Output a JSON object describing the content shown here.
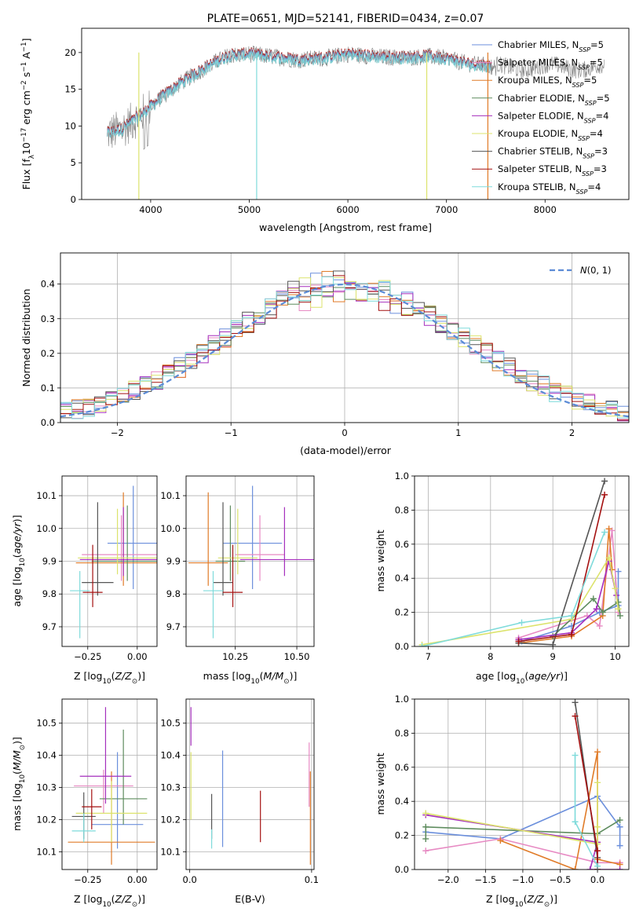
{
  "title": "PLATE=0651, MJD=52141, FIBERID=0434, z=0.07",
  "colors": {
    "chabrier_miles": "#6b8fdc",
    "salpeter_miles": "#e78ac3",
    "kroupa_miles": "#e07b28",
    "chabrier_elodie": "#5e8c5e",
    "salpeter_elodie": "#a52fbd",
    "kroupa_elodie": "#dce36c",
    "chabrier_stelib": "#555555",
    "salpeter_stelib": "#a41010",
    "kroupa_stelib": "#7fdbdb",
    "normal": "#5b8bd6",
    "grid": "#b0b0b0"
  },
  "chart_data": [
    {
      "id": "spectrum",
      "type": "line",
      "xlabel": "wavelength [Angstrom, rest frame]",
      "ylabel": "Flux [f_λ 10^-17 erg cm^-2 s^-1 A^-1]",
      "xlim": [
        3300,
        8850
      ],
      "ylim": [
        0,
        23.3
      ],
      "xticks": [
        4000,
        5000,
        6000,
        7000,
        8000
      ],
      "yticks": [
        0,
        5,
        10,
        15,
        20
      ],
      "grid": false,
      "legend_position": "top-right",
      "legend": [
        "Chabrier MILES, N_SSP=5",
        "Salpeter MILES, N_SSP=5",
        "Kroupa MILES, N_SSP=5",
        "Chabrier ELODIE, N_SSP=5",
        "Salpeter ELODIE, N_SSP=4",
        "Kroupa ELODIE, N_SSP=4",
        "Chabrier STELIB, N_SSP=3",
        "Salpeter STELIB, N_SSP=3",
        "Kroupa STELIB, N_SSP=4"
      ],
      "continuum": {
        "x": [
          3560,
          3700,
          3900,
          4100,
          4300,
          4500,
          4700,
          4800,
          5000,
          5200,
          5500,
          5800,
          6000,
          6300,
          6600,
          6800,
          7000,
          7200,
          7400,
          7500
        ],
        "y": [
          9.0,
          9.5,
          11.5,
          13.8,
          15.8,
          17.5,
          19.0,
          19.6,
          19.8,
          19.5,
          19.0,
          19.3,
          19.8,
          19.4,
          19.3,
          19.5,
          19.2,
          18.5,
          18.2,
          18.0
        ]
      },
      "observed_range": [
        3560,
        8600
      ],
      "model_range": [
        3560,
        7450
      ]
    },
    {
      "id": "residuals",
      "type": "histogram",
      "xlabel": "(data-model)/error",
      "ylabel": "Normed distribution",
      "xlim": [
        -2.5,
        2.5
      ],
      "ylim": [
        0,
        0.49
      ],
      "xticks": [
        -2,
        -1,
        0,
        1,
        2
      ],
      "yticks": [
        0.0,
        0.1,
        0.2,
        0.3,
        0.4
      ],
      "grid": true,
      "legend_position": "top-right",
      "legend": [
        "N(0,1)"
      ],
      "bin_width": 0.1,
      "n_series": 9
    },
    {
      "id": "age_vs_Z",
      "type": "errorbar",
      "xlabel": "Z [log10(Z/Z_sun)]",
      "ylabel": "age [log10(age/yr)]",
      "xlim": [
        -0.38,
        0.1
      ],
      "ylim": [
        9.64,
        10.16
      ],
      "xticks": [
        -0.25,
        0.0
      ],
      "yticks": [
        9.7,
        9.8,
        9.9,
        10.0,
        10.1
      ],
      "grid": true,
      "series": [
        {
          "name": "Chabrier MILES",
          "x": -0.02,
          "xerr": 0.13,
          "y": 9.955,
          "yerr": [
            0.14,
            0.175
          ]
        },
        {
          "name": "Salpeter MILES",
          "x": -0.08,
          "xerr": 0.2,
          "y": 9.92,
          "yerr": [
            0.08,
            0.12
          ]
        },
        {
          "name": "Kroupa MILES",
          "x": -0.07,
          "xerr": 0.24,
          "y": 9.895,
          "yerr": [
            0.07,
            0.215
          ]
        },
        {
          "name": "Chabrier ELODIE",
          "x": -0.05,
          "xerr": 0.18,
          "y": 9.9,
          "yerr": [
            0.06,
            0.17
          ]
        },
        {
          "name": "Salpeter ELODIE",
          "x": -0.07,
          "xerr": 0.22,
          "y": 9.905,
          "yerr": [
            0.05,
            0.16
          ]
        },
        {
          "name": "Kroupa ELODIE",
          "x": -0.1,
          "xerr": 0.2,
          "y": 9.91,
          "yerr": [
            0.05,
            0.15
          ]
        },
        {
          "name": "Chabrier STELIB",
          "x": -0.2,
          "xerr": 0.08,
          "y": 9.835,
          "yerr": [
            0.04,
            0.245
          ]
        },
        {
          "name": "Salpeter STELIB",
          "x": -0.225,
          "xerr": 0.05,
          "y": 9.805,
          "yerr": [
            0.045,
            0.145
          ]
        },
        {
          "name": "Kroupa STELIB",
          "x": -0.29,
          "xerr": 0.05,
          "y": 9.81,
          "yerr": [
            0.145,
            0.06
          ]
        }
      ]
    },
    {
      "id": "age_vs_mass",
      "type": "errorbar",
      "xlabel": "mass [log10(M/M_sun)]",
      "ylabel": "",
      "xlim": [
        10.05,
        10.57
      ],
      "ylim": [
        9.64,
        10.16
      ],
      "xticks": [
        10.25,
        10.5
      ],
      "yticks": [
        9.7,
        9.8,
        9.9,
        10.0,
        10.1
      ],
      "grid": true,
      "series": [
        {
          "name": "Chabrier MILES",
          "x": 10.32,
          "xerr": 0.12,
          "y": 9.955,
          "yerr": [
            0.14,
            0.175
          ]
        },
        {
          "name": "Salpeter MILES",
          "x": 10.35,
          "xerr": 0.1,
          "y": 9.92,
          "yerr": [
            0.08,
            0.12
          ]
        },
        {
          "name": "Kroupa MILES",
          "x": 10.14,
          "xerr": 0.08,
          "y": 9.895,
          "yerr": [
            0.07,
            0.215
          ]
        },
        {
          "name": "Chabrier ELODIE",
          "x": 10.23,
          "xerr": 0.06,
          "y": 9.9,
          "yerr": [
            0.06,
            0.17
          ]
        },
        {
          "name": "Salpeter ELODIE",
          "x": 10.45,
          "xerr": 0.18,
          "y": 9.905,
          "yerr": [
            0.05,
            0.16
          ]
        },
        {
          "name": "Kroupa ELODIE",
          "x": 10.26,
          "xerr": 0.08,
          "y": 9.91,
          "yerr": [
            0.05,
            0.15
          ]
        },
        {
          "name": "Chabrier STELIB",
          "x": 10.2,
          "xerr": 0.04,
          "y": 9.835,
          "yerr": [
            0.04,
            0.245
          ]
        },
        {
          "name": "Salpeter STELIB",
          "x": 10.24,
          "xerr": 0.04,
          "y": 9.805,
          "yerr": [
            0.045,
            0.145
          ]
        },
        {
          "name": "Kroupa STELIB",
          "x": 10.16,
          "xerr": 0.04,
          "y": 9.81,
          "yerr": [
            0.145,
            0.06
          ]
        }
      ]
    },
    {
      "id": "weight_vs_age",
      "type": "line",
      "xlabel": "age [log10(age/yr)]",
      "ylabel": "mass weight",
      "xlim": [
        6.78,
        10.22
      ],
      "ylim": [
        0,
        1.0
      ],
      "xticks": [
        7,
        8,
        9,
        10
      ],
      "yticks": [
        0.0,
        0.2,
        0.4,
        0.6,
        0.8,
        1.0
      ],
      "grid": true,
      "series": [
        {
          "name": "Chabrier MILES",
          "x": [
            8.5,
            9.3,
            9.75,
            10.05,
            10.05
          ],
          "y": [
            0.03,
            0.12,
            0.2,
            0.24,
            0.44
          ]
        },
        {
          "name": "Salpeter MILES",
          "x": [
            8.45,
            9.55,
            9.75,
            9.95,
            10.05
          ],
          "y": [
            0.05,
            0.18,
            0.12,
            0.68,
            0.2
          ]
        },
        {
          "name": "Kroupa MILES",
          "x": [
            8.45,
            9.3,
            9.8,
            9.9,
            9.95
          ],
          "y": [
            0.02,
            0.06,
            0.18,
            0.69,
            0.45
          ]
        },
        {
          "name": "Chabrier ELODIE",
          "x": [
            9.0,
            9.65,
            9.8,
            10.05,
            10.08
          ],
          "y": [
            0.06,
            0.28,
            0.2,
            0.26,
            0.18
          ]
        },
        {
          "name": "Salpeter ELODIE",
          "x": [
            8.45,
            9.3,
            9.7,
            9.9,
            10.02
          ],
          "y": [
            0.04,
            0.08,
            0.22,
            0.5,
            0.3
          ]
        },
        {
          "name": "Kroupa ELODIE",
          "x": [
            6.9,
            9.3,
            9.9,
            10.0,
            10.05
          ],
          "y": [
            0.01,
            0.16,
            0.52,
            0.34,
            0.22
          ]
        },
        {
          "name": "Chabrier STELIB",
          "x": [
            8.45,
            9.0,
            9.83
          ],
          "y": [
            0.02,
            0.01,
            0.97
          ]
        },
        {
          "name": "Salpeter STELIB",
          "x": [
            8.45,
            9.3,
            9.83
          ],
          "y": [
            0.03,
            0.07,
            0.89
          ]
        },
        {
          "name": "Kroupa STELIB",
          "x": [
            6.9,
            8.5,
            9.3,
            9.83
          ],
          "y": [
            0.0,
            0.14,
            0.18,
            0.67
          ]
        }
      ]
    },
    {
      "id": "mass_vs_Z",
      "type": "errorbar",
      "xlabel": "Z [log10(Z/Z_sun)]",
      "ylabel": "mass [log10(M/M_sun)]",
      "xlim": [
        -0.38,
        0.1
      ],
      "ylim": [
        10.045,
        10.575
      ],
      "xticks": [
        -0.25,
        0.0
      ],
      "yticks": [
        10.1,
        10.2,
        10.3,
        10.4,
        10.5
      ],
      "grid": true,
      "series": [
        {
          "name": "Chabrier MILES",
          "x": -0.1,
          "xerr": 0.13,
          "y": 10.185,
          "yerr": [
            0.075,
            0.225
          ]
        },
        {
          "name": "Salpeter MILES",
          "x": -0.17,
          "xerr": 0.15,
          "y": 10.305,
          "yerr": [
            0.085,
            0.05
          ]
        },
        {
          "name": "Kroupa MILES",
          "x": -0.13,
          "xerr": 0.22,
          "y": 10.13,
          "yerr": [
            0.07,
            0.22
          ]
        },
        {
          "name": "Chabrier ELODIE",
          "x": -0.07,
          "xerr": 0.12,
          "y": 10.265,
          "yerr": [
            0.08,
            0.215
          ]
        },
        {
          "name": "Salpeter ELODIE",
          "x": -0.16,
          "xerr": 0.13,
          "y": 10.335,
          "yerr": [
            0.085,
            0.215
          ]
        },
        {
          "name": "Kroupa ELODIE",
          "x": -0.13,
          "xerr": 0.18,
          "y": 10.22,
          "yerr": [
            0.09,
            0.1
          ]
        },
        {
          "name": "Chabrier STELIB",
          "x": -0.27,
          "xerr": 0.06,
          "y": 10.21,
          "yerr": [
            0.07,
            0.075
          ]
        },
        {
          "name": "Salpeter STELIB",
          "x": -0.23,
          "xerr": 0.05,
          "y": 10.24,
          "yerr": [
            0.07,
            0.055
          ]
        },
        {
          "name": "Kroupa STELIB",
          "x": -0.27,
          "xerr": 0.06,
          "y": 10.165,
          "yerr": [
            0.035,
            0.055
          ]
        }
      ]
    },
    {
      "id": "mass_vs_EBV",
      "type": "errorbar",
      "xlabel": "E(B-V)",
      "ylabel": "",
      "xlim": [
        -0.003,
        0.102
      ],
      "ylim": [
        10.045,
        10.575
      ],
      "xticks": [
        0.0,
        0.1
      ],
      "yticks": [
        10.1,
        10.2,
        10.3,
        10.4,
        10.5
      ],
      "grid": true,
      "series": [
        {
          "name": "Chabrier MILES",
          "x": 0.027,
          "y": 10.265,
          "yerr": [
            0.15,
            0.15
          ]
        },
        {
          "name": "Salpeter MILES",
          "x": 0.098,
          "y": 10.34,
          "yerr": [
            0.1,
            0.1
          ]
        },
        {
          "name": "Kroupa MILES",
          "x": 0.099,
          "y": 10.2,
          "yerr": [
            0.14,
            0.15
          ]
        },
        {
          "name": "Chabrier ELODIE",
          "x": 0.001,
          "y": 10.29,
          "yerr": [
            0.0,
            0.0
          ]
        },
        {
          "name": "Salpeter ELODIE",
          "x": 0.001,
          "y": 10.49,
          "yerr": [
            0.06,
            0.06
          ]
        },
        {
          "name": "Kroupa ELODIE",
          "x": 0.001,
          "y": 10.3,
          "yerr": [
            0.1,
            0.11
          ]
        },
        {
          "name": "Chabrier STELIB",
          "x": 0.018,
          "y": 10.21,
          "yerr": [
            0.07,
            0.07
          ]
        },
        {
          "name": "Salpeter STELIB",
          "x": 0.058,
          "y": 10.21,
          "yerr": [
            0.08,
            0.08
          ]
        },
        {
          "name": "Kroupa STELIB",
          "x": 0.018,
          "y": 10.14,
          "yerr": [
            0.03,
            0.03
          ]
        }
      ]
    },
    {
      "id": "weight_vs_Z",
      "type": "line",
      "xlabel": "Z [log10(Z/Z_sun)]",
      "ylabel": "mass weight",
      "xlim": [
        -2.45,
        0.42
      ],
      "ylim": [
        0,
        1.0
      ],
      "xticks": [
        -2.0,
        -1.5,
        -1.0,
        -0.5,
        0.0
      ],
      "yticks": [
        0.0,
        0.2,
        0.4,
        0.6,
        0.8,
        1.0
      ],
      "grid": true,
      "series": [
        {
          "name": "Chabrier MILES",
          "x": [
            -2.3,
            -1.3,
            0.0,
            0.3,
            0.3
          ],
          "y": [
            0.22,
            0.18,
            0.43,
            0.25,
            0.14
          ]
        },
        {
          "name": "Salpeter MILES",
          "x": [
            -2.3,
            -1.3,
            0.0,
            0.3,
            0.3
          ],
          "y": [
            0.11,
            0.18,
            0.04,
            0.04,
            0.04
          ]
        },
        {
          "name": "Kroupa MILES",
          "x": [
            -1.3,
            -0.3,
            0.0,
            0.0,
            0.3
          ],
          "y": [
            0.17,
            0.0,
            0.69,
            0.06,
            0.03
          ]
        },
        {
          "name": "Chabrier ELODIE",
          "x": [
            -2.3,
            -2.3,
            0.0,
            0.3
          ],
          "y": [
            0.18,
            0.25,
            0.21,
            0.29
          ]
        },
        {
          "name": "Salpeter ELODIE",
          "x": [
            -2.3,
            0.0,
            -0.1,
            0.3
          ],
          "y": [
            0.32,
            0.16,
            0.0,
            0.0
          ]
        },
        {
          "name": "Kroupa ELODIE",
          "x": [
            -2.3,
            0.0,
            0.0,
            0.0
          ],
          "y": [
            0.33,
            0.15,
            0.51,
            0.25
          ]
        },
        {
          "name": "Chabrier STELIB",
          "x": [
            -0.3,
            0.0,
            0.0
          ],
          "y": [
            0.98,
            0.07,
            0.0
          ]
        },
        {
          "name": "Salpeter STELIB",
          "x": [
            -0.3,
            0.0,
            0.0
          ],
          "y": [
            0.9,
            0.11,
            0.0
          ]
        },
        {
          "name": "Kroupa STELIB",
          "x": [
            -0.3,
            -0.3,
            0.0
          ],
          "y": [
            0.67,
            0.28,
            0.02
          ]
        }
      ]
    }
  ]
}
